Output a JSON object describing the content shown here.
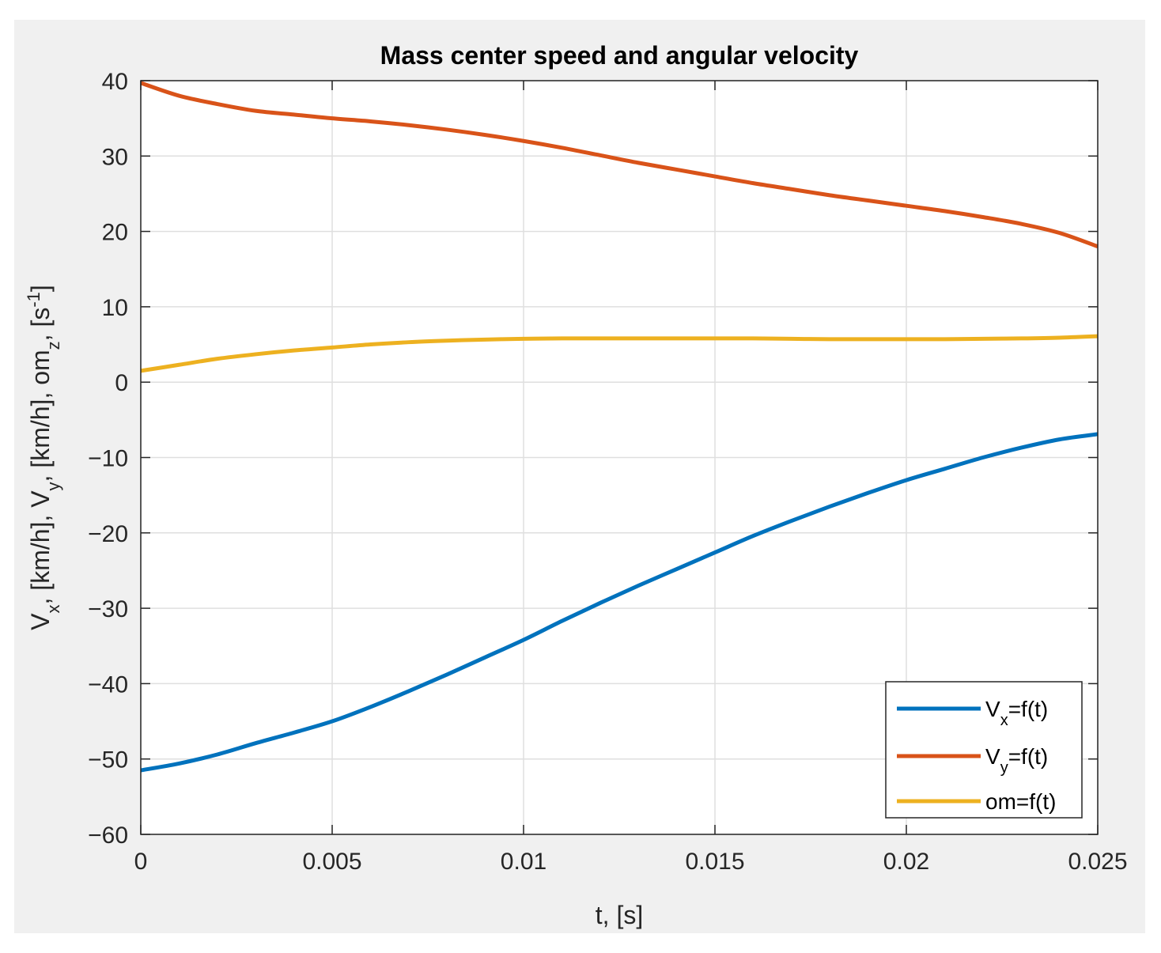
{
  "chart_data": {
    "type": "line",
    "title": "Mass center speed and angular velocity",
    "xlabel": "t, [s]",
    "ylabel": {
      "parts": [
        {
          "text": "V",
          "sub": "x"
        },
        {
          "text": ", [km/h], V",
          "sub": "y"
        },
        {
          "text": ", [km/h], om",
          "sub": "z"
        },
        {
          "text": ", [s",
          "sup": "-1"
        },
        {
          "text": "]"
        }
      ]
    },
    "xlim": [
      0,
      0.025
    ],
    "ylim": [
      -60,
      40
    ],
    "xticks": [
      0,
      0.005,
      0.01,
      0.015,
      0.02,
      0.025
    ],
    "xtick_labels": [
      "0",
      "0.005",
      "0.01",
      "0.015",
      "0.02",
      "0.025"
    ],
    "yticks": [
      -60,
      -50,
      -40,
      -30,
      -20,
      -10,
      0,
      10,
      20,
      30,
      40
    ],
    "ytick_labels": [
      "−60",
      "−50",
      "−40",
      "−30",
      "−20",
      "−10",
      "0",
      "10",
      "20",
      "30",
      "40"
    ],
    "grid": true,
    "legend_location": "bottom-right",
    "x": [
      0,
      0.001,
      0.002,
      0.003,
      0.004,
      0.005,
      0.006,
      0.007,
      0.008,
      0.009,
      0.01,
      0.011,
      0.012,
      0.013,
      0.014,
      0.015,
      0.016,
      0.017,
      0.018,
      0.019,
      0.02,
      0.021,
      0.022,
      0.023,
      0.024,
      0.025
    ],
    "series": [
      {
        "name": "V_x=f(t)",
        "legend_label": {
          "main": "V",
          "sub": "x",
          "rest": "=f(t)"
        },
        "color": "#0072bd",
        "values": [
          -51.5,
          -50.6,
          -49.4,
          -47.9,
          -46.5,
          -45.0,
          -43.1,
          -41.0,
          -38.8,
          -36.5,
          -34.2,
          -31.7,
          -29.3,
          -27.0,
          -24.8,
          -22.6,
          -20.4,
          -18.4,
          -16.5,
          -14.7,
          -13.0,
          -11.5,
          -10.0,
          -8.7,
          -7.6,
          -6.9
        ]
      },
      {
        "name": "V_y=f(t)",
        "legend_label": {
          "main": "V",
          "sub": "y",
          "rest": "=f(t)"
        },
        "color": "#d95319",
        "values": [
          39.7,
          38.0,
          36.9,
          36.0,
          35.5,
          35.0,
          34.6,
          34.1,
          33.5,
          32.8,
          32.0,
          31.1,
          30.1,
          29.1,
          28.2,
          27.3,
          26.4,
          25.6,
          24.8,
          24.1,
          23.4,
          22.7,
          21.9,
          21.0,
          19.8,
          18.0
        ]
      },
      {
        "name": "om=f(t)",
        "legend_label": {
          "main": "om=f(t)",
          "sub": "",
          "rest": ""
        },
        "color": "#edb120",
        "values": [
          1.5,
          2.3,
          3.1,
          3.7,
          4.2,
          4.6,
          5.0,
          5.3,
          5.5,
          5.65,
          5.75,
          5.8,
          5.8,
          5.8,
          5.8,
          5.8,
          5.8,
          5.75,
          5.7,
          5.7,
          5.7,
          5.7,
          5.75,
          5.8,
          5.9,
          6.1
        ]
      }
    ]
  }
}
